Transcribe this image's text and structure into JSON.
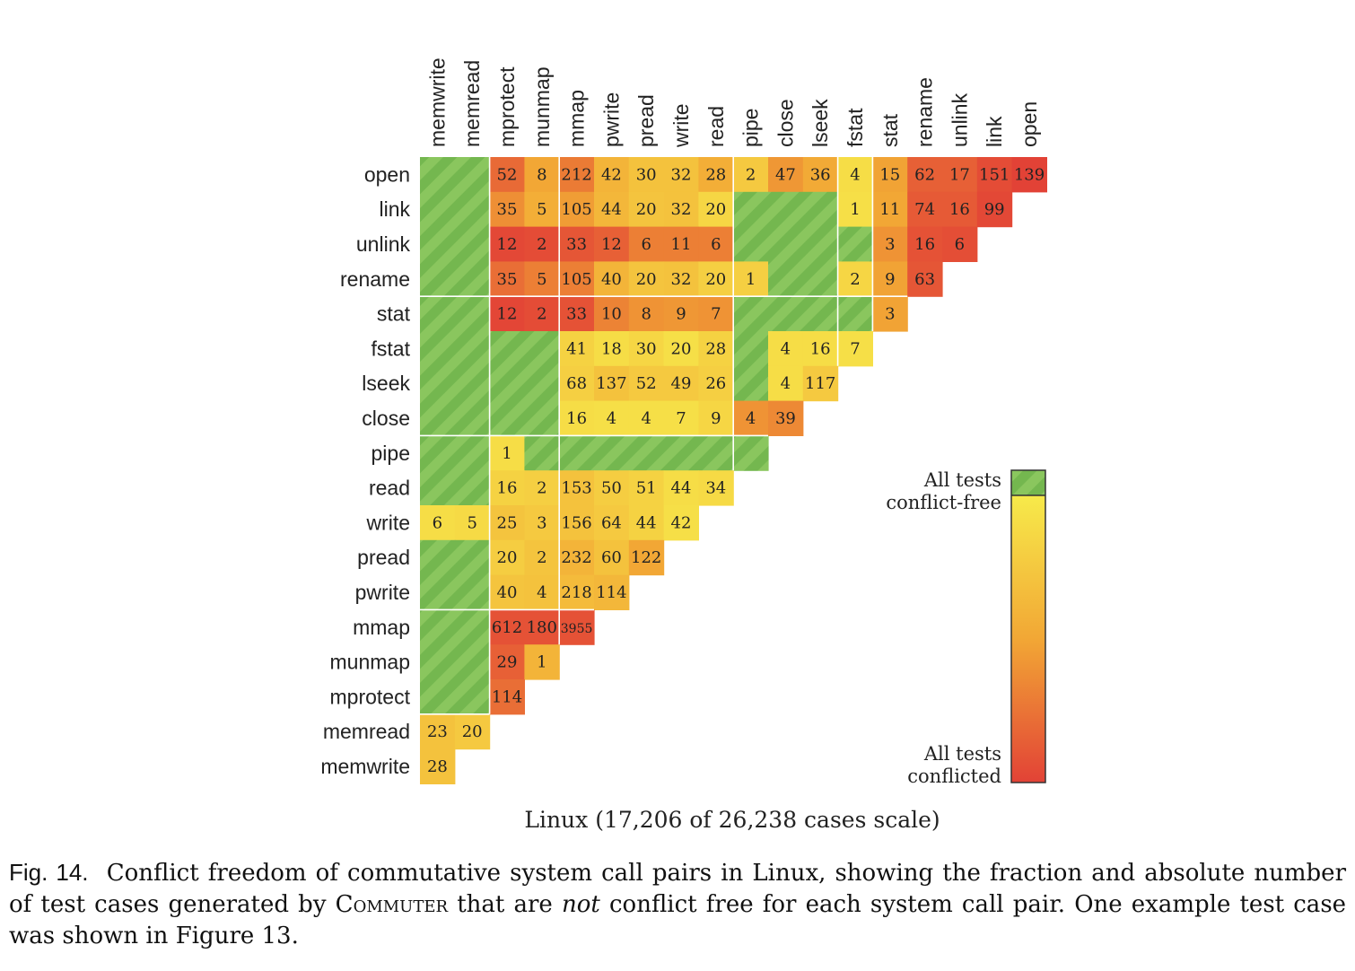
{
  "chart_data": {
    "type": "heatmap",
    "title": "Linux (17,206 of 26,238 cases scale)",
    "columns": [
      "memwrite",
      "memread",
      "mprotect",
      "munmap",
      "mmap",
      "pwrite",
      "pread",
      "write",
      "read",
      "pipe",
      "close",
      "lseek",
      "fstat",
      "stat",
      "rename",
      "unlink",
      "link",
      "open"
    ],
    "rows": [
      "open",
      "link",
      "unlink",
      "rename",
      "stat",
      "fstat",
      "lseek",
      "close",
      "pipe",
      "read",
      "write",
      "pread",
      "pwrite",
      "mmap",
      "munmap",
      "mprotect",
      "memread",
      "memwrite"
    ],
    "values": [
      [
        0,
        0,
        52,
        8,
        212,
        42,
        30,
        32,
        28,
        2,
        47,
        36,
        4,
        15,
        62,
        17,
        151,
        139
      ],
      [
        0,
        0,
        35,
        5,
        105,
        44,
        20,
        32,
        20,
        0,
        0,
        0,
        1,
        11,
        74,
        16,
        99
      ],
      [
        0,
        0,
        12,
        2,
        33,
        12,
        6,
        11,
        6,
        0,
        0,
        0,
        0,
        3,
        16,
        6
      ],
      [
        0,
        0,
        35,
        5,
        105,
        40,
        20,
        32,
        20,
        1,
        0,
        0,
        2,
        9,
        63
      ],
      [
        0,
        0,
        12,
        2,
        33,
        10,
        8,
        9,
        7,
        0,
        0,
        0,
        0,
        3
      ],
      [
        0,
        0,
        0,
        0,
        41,
        18,
        30,
        20,
        28,
        0,
        4,
        16,
        7
      ],
      [
        0,
        0,
        0,
        0,
        68,
        137,
        52,
        49,
        26,
        0,
        4,
        117
      ],
      [
        0,
        0,
        0,
        0,
        16,
        4,
        4,
        7,
        9,
        4,
        39
      ],
      [
        0,
        0,
        1,
        0,
        0,
        0,
        0,
        0,
        0,
        0
      ],
      [
        0,
        0,
        16,
        2,
        153,
        50,
        51,
        44,
        34
      ],
      [
        6,
        5,
        25,
        3,
        156,
        64,
        44,
        42
      ],
      [
        0,
        0,
        20,
        2,
        232,
        60,
        122
      ],
      [
        0,
        0,
        40,
        4,
        218,
        114
      ],
      [
        0,
        0,
        612,
        180,
        3955
      ],
      [
        0,
        0,
        29,
        1
      ],
      [
        0,
        0,
        114
      ],
      [
        23,
        20
      ],
      [
        28
      ]
    ],
    "conflict_fraction": [
      [
        0,
        0,
        0.8,
        0.5,
        0.72,
        0.4,
        0.3,
        0.3,
        0.45,
        0.25,
        0.58,
        0.48,
        0.1,
        0.52,
        0.85,
        0.85,
        0.95,
        1.0
      ],
      [
        0,
        0,
        0.62,
        0.45,
        0.55,
        0.38,
        0.28,
        0.3,
        0.15,
        0,
        0,
        0,
        0.08,
        0.5,
        0.88,
        0.88,
        0.97
      ],
      [
        0,
        0,
        0.97,
        0.95,
        0.9,
        0.85,
        0.7,
        0.7,
        0.7,
        0,
        0,
        0,
        0,
        0.6,
        0.92,
        0.94
      ],
      [
        0,
        0,
        0.78,
        0.7,
        0.7,
        0.4,
        0.28,
        0.3,
        0.2,
        0.2,
        0,
        0,
        0.15,
        0.52,
        0.9
      ],
      [
        0,
        0,
        0.98,
        0.95,
        0.92,
        0.68,
        0.6,
        0.58,
        0.6,
        0,
        0,
        0,
        0,
        0.52
      ],
      [
        0,
        0,
        0,
        0,
        0.18,
        0.1,
        0.15,
        0.08,
        0.18,
        0,
        0.1,
        0.1,
        0.08
      ],
      [
        0,
        0,
        0,
        0,
        0.2,
        0.3,
        0.25,
        0.25,
        0.2,
        0,
        0.1,
        0.25
      ],
      [
        0,
        0,
        0,
        0,
        0.1,
        0.08,
        0.08,
        0.08,
        0.15,
        0.6,
        0.65
      ],
      [
        0,
        0,
        0.1,
        0,
        0,
        0,
        0,
        0,
        0,
        0
      ],
      [
        0,
        0,
        0.18,
        0.2,
        0.3,
        0.22,
        0.18,
        0.1,
        0.12
      ],
      [
        0.1,
        0.12,
        0.28,
        0.25,
        0.3,
        0.25,
        0.18,
        0.08
      ],
      [
        0,
        0,
        0.22,
        0.28,
        0.4,
        0.3,
        0.5
      ],
      [
        0,
        0,
        0.28,
        0.3,
        0.35,
        0.38
      ],
      [
        0,
        0,
        0.92,
        0.92,
        0.92
      ],
      [
        0,
        0,
        0.85,
        0.4
      ],
      [
        0,
        0,
        0.78
      ],
      [
        0.3,
        0.25
      ],
      [
        0.3
      ]
    ],
    "legend": {
      "top_label": [
        "All tests",
        "conflict-free"
      ],
      "bottom_label": [
        "All tests",
        "conflicted"
      ],
      "placement": "right"
    },
    "colors": {
      "conflict_free": "#74b74f",
      "conflict_free_stripe": "#8ac65e",
      "low": "#f7ea4a",
      "mid": "#f2a735",
      "high": "#e24236"
    }
  },
  "caption": {
    "label": "Fig. 14.",
    "text_before": "Conflict freedom of commutative system call pairs in Linux, showing the fraction and absolute number of test cases generated by",
    "tool_name": "Commuter",
    "text_middle": "that are",
    "emphasis": "not",
    "text_after": "conflict free for each system call pair. One example test case was shown in Figure 13."
  }
}
